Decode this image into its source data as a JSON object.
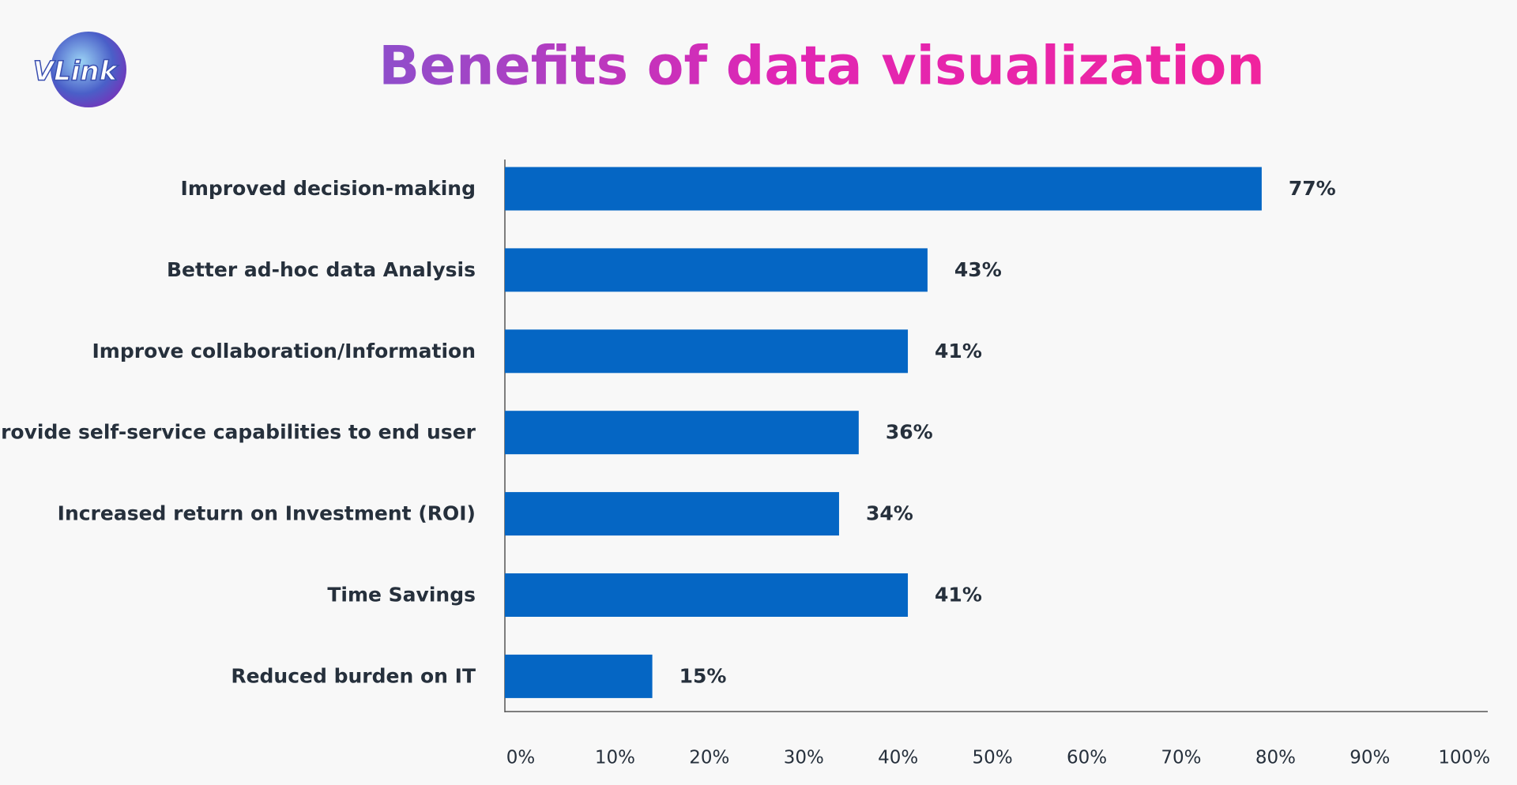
{
  "logo": "VLink",
  "chart_data": {
    "type": "bar",
    "orientation": "horizontal",
    "title": "Benefits of data visualization",
    "categories": [
      "Improved decision-making",
      "Better ad-hoc data Analysis",
      "Improve collaboration/Information",
      "Provide self-service capabilities to end user",
      "Increased return on Investment (ROI)",
      "Time Savings",
      "Reduced burden on IT"
    ],
    "values": [
      77,
      43,
      41,
      36,
      34,
      41,
      15
    ],
    "value_labels": [
      "77%",
      "43%",
      "41%",
      "36%",
      "34%",
      "41%",
      "15%"
    ],
    "color": "#0566c4",
    "xlim": [
      0,
      100
    ],
    "xticks": [
      {
        "value": 0,
        "label": "0%"
      },
      {
        "value": 10,
        "label": "10%"
      },
      {
        "value": 20,
        "label": "20%"
      },
      {
        "value": 30,
        "label": "30%"
      },
      {
        "value": 40,
        "label": "40%"
      },
      {
        "value": 50,
        "label": "50%"
      },
      {
        "value": 60,
        "label": "60%"
      },
      {
        "value": 70,
        "label": "70%"
      },
      {
        "value": 80,
        "label": "80%"
      },
      {
        "value": 90,
        "label": "90%"
      },
      {
        "value": 100,
        "label": "100%"
      }
    ],
    "grid": false
  }
}
